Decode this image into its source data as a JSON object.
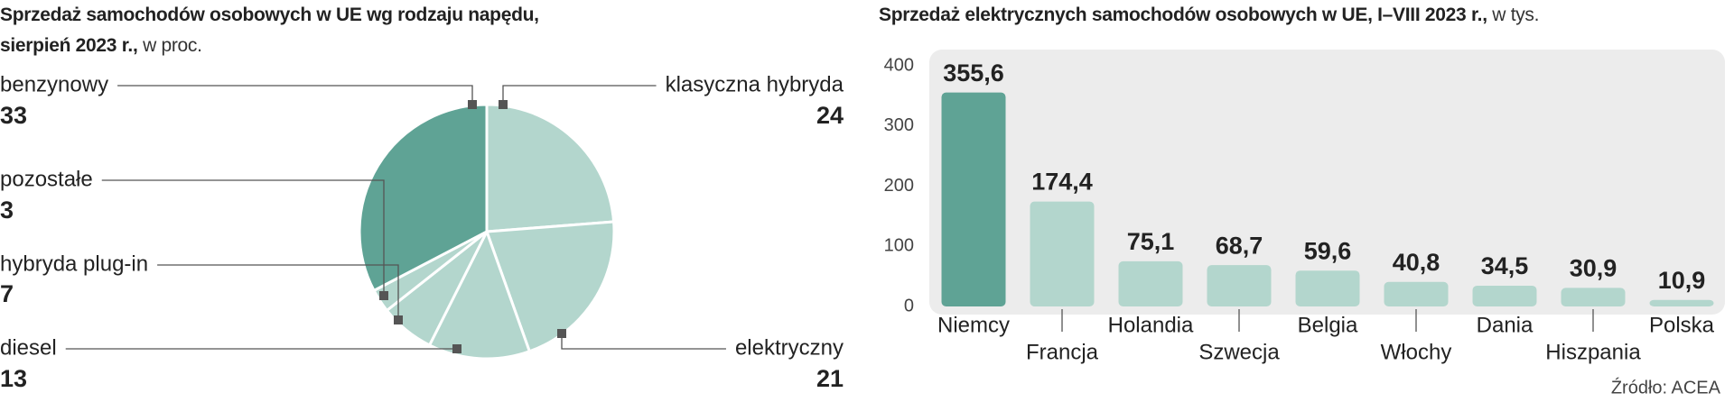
{
  "chart_data": [
    {
      "type": "pie",
      "title": "Sprzedaż samochodów osobowych w UE wg rodzaju napędu, sierpień 2023 r.,",
      "subtitle": "w proc.",
      "categories": [
        "klasyczna hybryda",
        "elektryczny",
        "diesel",
        "hybryda plug-in",
        "pozostałe",
        "benzynowy"
      ],
      "values": [
        24,
        21,
        13,
        7,
        3,
        33
      ],
      "colors": [
        "#b3d6cd",
        "#b3d6cd",
        "#b3d6cd",
        "#b3d6cd",
        "#b3d6cd",
        "#5fa395"
      ]
    },
    {
      "type": "bar",
      "title": "Sprzedaż elektrycznych samochodów osobowych w UE, I–VIII 2023 r.,",
      "subtitle": "w tys.",
      "categories": [
        "Niemcy",
        "Francja",
        "Holandia",
        "Szwecja",
        "Belgia",
        "Włochy",
        "Dania",
        "Hiszpania",
        "Polska"
      ],
      "values": [
        355.6,
        174.4,
        75.1,
        68.7,
        59.6,
        40.8,
        34.5,
        30.9,
        10.9
      ],
      "value_labels": [
        "355,6",
        "174,4",
        "75,1",
        "68,7",
        "59,6",
        "40,8",
        "34,5",
        "30,9",
        "10,9"
      ],
      "colors": [
        "#5fa395",
        "#b3d6cd",
        "#b3d6cd",
        "#b3d6cd",
        "#b3d6cd",
        "#b3d6cd",
        "#b3d6cd",
        "#b3d6cd",
        "#b3d6cd"
      ],
      "ylim": [
        0,
        400
      ],
      "yticks": [
        0,
        100,
        200,
        300,
        400
      ],
      "source": "Źródło: ACEA"
    }
  ]
}
